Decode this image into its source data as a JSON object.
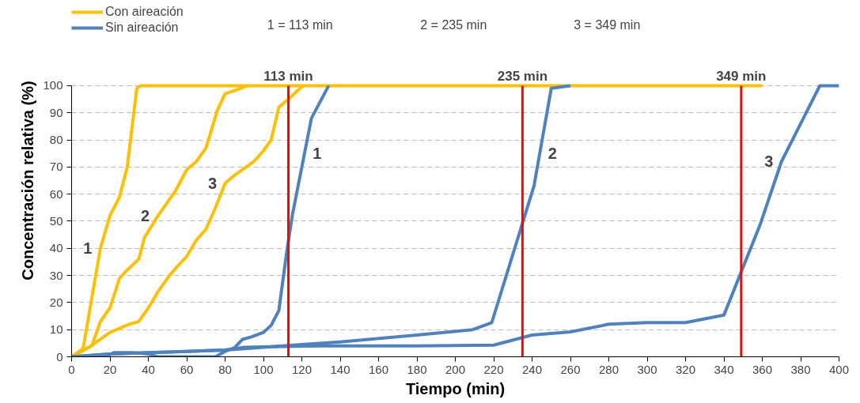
{
  "chart_data": {
    "type": "line",
    "xlabel": "Tiempo (min)",
    "ylabel": "Concentración relativa (%)",
    "xlim": [
      0,
      400
    ],
    "ylim": [
      0,
      100
    ],
    "xticks": [
      0,
      20,
      40,
      60,
      80,
      100,
      120,
      140,
      160,
      180,
      200,
      220,
      240,
      260,
      280,
      300,
      320,
      340,
      360,
      380,
      400
    ],
    "yticks": [
      0,
      10,
      20,
      30,
      40,
      50,
      60,
      70,
      80,
      90,
      100
    ],
    "grid": "y",
    "legend": "top left",
    "marker": "none",
    "line_style": "solid",
    "series": [
      {
        "name": "Con aireación",
        "color": "#ffc000",
        "x": [
          0,
          6,
          15,
          20,
          25,
          29,
          34,
          36,
          360
        ],
        "values": [
          0,
          3,
          40,
          52,
          59,
          70,
          99,
          100,
          100
        ]
      },
      {
        "color": "#ffc000",
        "x": [
          0,
          10.5,
          15,
          20,
          25,
          29,
          35,
          38,
          45,
          50,
          54,
          60,
          65,
          70,
          76,
          80,
          84,
          90,
          92
        ],
        "values": [
          0,
          4,
          13,
          18,
          29,
          32,
          36,
          44,
          52,
          57,
          61,
          69,
          72,
          77,
          91,
          97,
          98,
          99.5,
          100
        ]
      },
      {
        "color": "#ffc000",
        "x": [
          0,
          10,
          20,
          30,
          35,
          40,
          45,
          51,
          56,
          60,
          65,
          70,
          75,
          80,
          85,
          95,
          100,
          104,
          108,
          113,
          119,
          121
        ],
        "values": [
          0,
          4,
          9,
          12,
          13,
          18,
          24,
          30,
          34,
          37,
          43,
          47,
          55,
          64,
          67,
          72,
          76,
          80,
          92,
          95,
          99,
          100
        ]
      },
      {
        "name": "Sin aireación",
        "color": "#4f81bd",
        "x": [
          0,
          18,
          22,
          32,
          40,
          45,
          75,
          80,
          85,
          89,
          94,
          100,
          104,
          108,
          112,
          115,
          125,
          134
        ],
        "values": [
          0,
          0,
          1.5,
          1.5,
          1,
          0,
          0,
          2,
          3.4,
          6.4,
          7.4,
          9,
          11.6,
          17,
          38,
          52,
          88,
          100
        ]
      },
      {
        "color": "#4f81bd",
        "x": [
          0,
          20,
          40,
          60,
          80,
          100,
          120,
          140,
          180,
          209,
          219,
          241,
          250,
          260
        ],
        "values": [
          0,
          1,
          1.5,
          2,
          2.5,
          3.5,
          4.5,
          5.5,
          8,
          10,
          12.6,
          63,
          99,
          100
        ]
      },
      {
        "color": "#4f81bd",
        "x": [
          0,
          20,
          60,
          80,
          90,
          110,
          130,
          180,
          220,
          240,
          260,
          280,
          300,
          320,
          340,
          359,
          370,
          390,
          400
        ],
        "values": [
          0,
          1,
          2,
          2.5,
          3.5,
          3.8,
          4,
          4,
          4.3,
          8,
          9.2,
          12,
          12.6,
          12.6,
          15.4,
          49,
          72,
          100,
          100
        ]
      }
    ],
    "ref_lines": [
      {
        "axis": "x",
        "value": 113,
        "label": "113 min",
        "color": "#ff0000"
      },
      {
        "axis": "x",
        "value": 235,
        "label": "235 min",
        "color": "#ff0000"
      },
      {
        "axis": "x",
        "value": 349,
        "label": "349 min",
        "color": "#ff0000"
      }
    ],
    "annotations": [
      "1 = 113  min",
      "2 = 235  min",
      "3 = 349  min",
      {
        "text": "1",
        "x": 15,
        "y": 40
      },
      {
        "text": "2",
        "x": 45,
        "y": 52
      },
      {
        "text": "3",
        "x": 80,
        "y": 64
      },
      {
        "text": "1",
        "x": 121.4,
        "y": 75
      },
      {
        "text": "2",
        "x": 244,
        "y": 75
      },
      {
        "text": "3",
        "x": 370,
        "y": 72
      }
    ]
  }
}
